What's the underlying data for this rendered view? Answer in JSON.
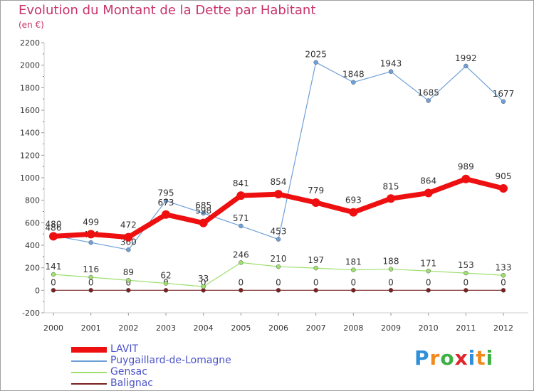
{
  "chart_data": {
    "type": "line",
    "title": "Evolution du Montant de la Dette par Habitant",
    "subtitle": "(en €)",
    "xlabel": "",
    "ylabel": "",
    "ylim": [
      -200,
      2200
    ],
    "yticks": [
      -200,
      0,
      200,
      400,
      600,
      800,
      1000,
      1200,
      1400,
      1600,
      1800,
      2000,
      2200
    ],
    "categories": [
      "2000",
      "2001",
      "2002",
      "2003",
      "2004",
      "2005",
      "2006",
      "2007",
      "2008",
      "2009",
      "2010",
      "2011",
      "2012"
    ],
    "grid": false,
    "legend_position": "bottom-left",
    "series": [
      {
        "name": "Balignac",
        "color": "#7a2020",
        "values": [
          0,
          0,
          0,
          0,
          0,
          0,
          0,
          0,
          0,
          0,
          0,
          0,
          0
        ]
      },
      {
        "name": "Gensac",
        "color": "#9ee06e",
        "values": [
          141,
          116,
          89,
          62,
          33,
          246,
          210,
          197,
          181,
          188,
          171,
          153,
          133
        ]
      },
      {
        "name": "Puygaillard-de-Lomagne",
        "color": "#6fa0d8",
        "values": [
          486,
          424,
          360,
          795,
          685,
          571,
          453,
          2025,
          1848,
          1943,
          1685,
          1992,
          1677
        ]
      },
      {
        "name": "LAVIT",
        "color": "#ee1010",
        "values": [
          480,
          499,
          472,
          673,
          598,
          841,
          854,
          779,
          693,
          815,
          864,
          989,
          905
        ]
      }
    ],
    "legend_order": [
      "LAVIT",
      "Puygaillard-de-Lomagne",
      "Gensac",
      "Balignac"
    ]
  },
  "logo": {
    "letters": [
      "P",
      "r",
      "o",
      "x",
      "i",
      "t",
      "i"
    ],
    "colors": [
      "#2f8fd8",
      "#f08a1c",
      "#3cb043",
      "#e0242c",
      "#2f8fd8",
      "#f08a1c",
      "#3cb043"
    ]
  }
}
